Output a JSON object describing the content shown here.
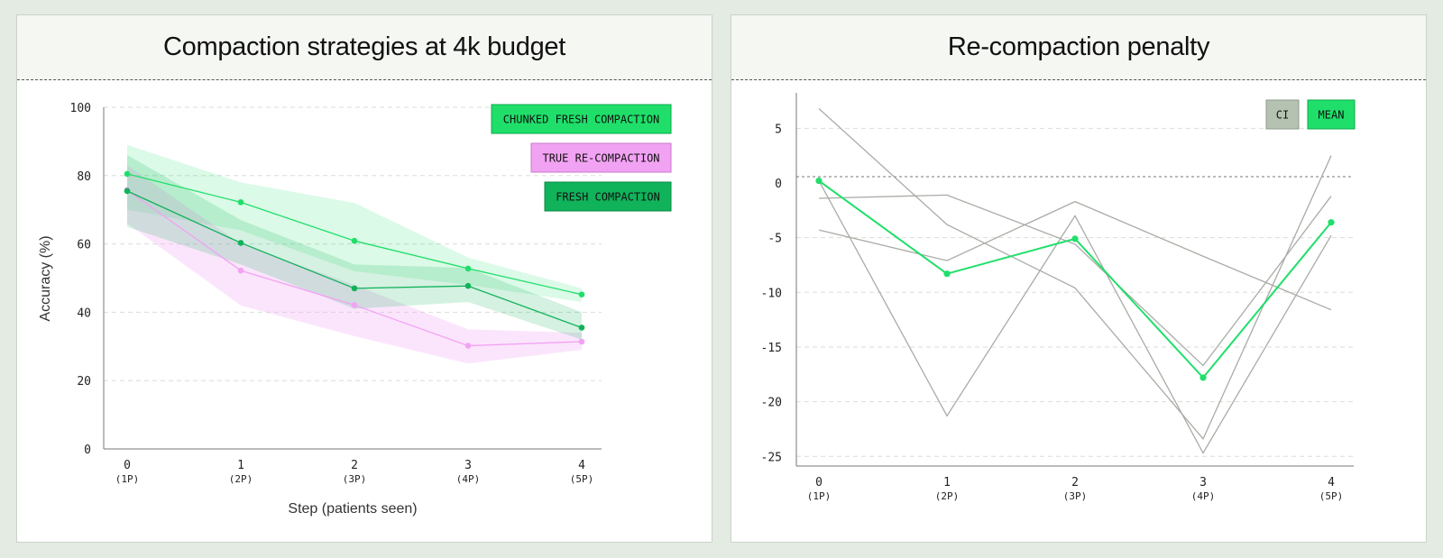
{
  "colors": {
    "page_bg": "#e3ebe2",
    "chunked": "#1fdf6a",
    "chunked_band": "#1fdf6a",
    "true_re": "#f2a2f3",
    "fresh": "#10b25a",
    "ci_line": "#a9aca5",
    "ci_legend": "#b5c2b2",
    "mean_line": "#1fdf6a"
  },
  "chart_data": [
    {
      "type": "line",
      "title": "Compaction strategies at 4k budget",
      "xlabel": "Step (patients seen)",
      "ylabel": "Accuracy (%)",
      "x": [
        0,
        1,
        2,
        3,
        4
      ],
      "x_ticks": [
        {
          "main": "0",
          "sub": "(1P)"
        },
        {
          "main": "1",
          "sub": "(2P)"
        },
        {
          "main": "2",
          "sub": "(3P)"
        },
        {
          "main": "3",
          "sub": "(4P)"
        },
        {
          "main": "4",
          "sub": "(5P)"
        }
      ],
      "y_ticks": [
        "0",
        "20",
        "40",
        "60",
        "80",
        "100"
      ],
      "ylim": [
        0,
        100
      ],
      "grid": true,
      "legend_position": "top-right",
      "series": [
        {
          "name": "CHUNKED FRESH COMPACTION",
          "values": [
            80.5,
            72.2,
            60.9,
            52.8,
            45.2
          ],
          "lower": [
            70,
            64,
            52,
            48,
            43
          ],
          "upper": [
            89,
            78,
            72,
            56,
            47
          ]
        },
        {
          "name": "TRUE RE-COMPACTION",
          "values": [
            75.8,
            52.2,
            42.1,
            30.2,
            31.4
          ],
          "lower": [
            66,
            42,
            33,
            25,
            29
          ],
          "upper": [
            83,
            60,
            48,
            35,
            34
          ]
        },
        {
          "name": "FRESH COMPACTION",
          "values": [
            75.5,
            60.3,
            47.0,
            47.7,
            35.5
          ],
          "lower": [
            65,
            54,
            41,
            43,
            32
          ],
          "upper": [
            86,
            67,
            54,
            53,
            40
          ]
        }
      ]
    },
    {
      "type": "line",
      "title": "Re-compaction penalty",
      "x": [
        0,
        1,
        2,
        3,
        4
      ],
      "x_ticks": [
        {
          "main": "0",
          "sub": "(1P)"
        },
        {
          "main": "1",
          "sub": "(2P)"
        },
        {
          "main": "2",
          "sub": "(3P)"
        },
        {
          "main": "3",
          "sub": "(4P)"
        },
        {
          "main": "4",
          "sub": "(5P)"
        }
      ],
      "y_ticks": [
        "5",
        "0",
        "-5",
        "-10",
        "-15",
        "-20",
        "-25"
      ],
      "ylim": [
        -26,
        8.5
      ],
      "grid": true,
      "zero_line": true,
      "legend_position": "top-right",
      "legend": [
        "CI",
        "MEAN"
      ],
      "series": [
        {
          "values": [
            6.8,
            -3.8,
            -9.6,
            -23.4,
            2.5
          ]
        },
        {
          "values": [
            0.2,
            -21.3,
            -3.0,
            -24.7,
            -4.8
          ]
        },
        {
          "values": [
            -4.3,
            -7.1,
            -1.7,
            -6.7,
            -11.6
          ]
        },
        {
          "values": [
            -1.4,
            -1.1,
            -5.6,
            -16.7,
            -1.2
          ]
        },
        {
          "name": "MEAN",
          "values": [
            0.2,
            -8.3,
            -5.1,
            -17.8,
            -3.6
          ]
        }
      ]
    }
  ]
}
